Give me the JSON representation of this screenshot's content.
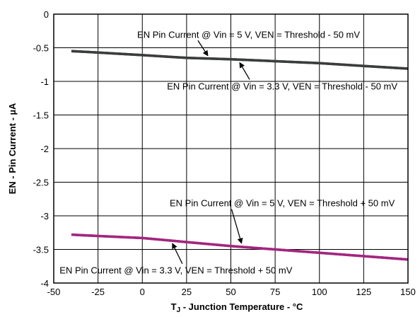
{
  "chart_data": {
    "type": "line",
    "title": "",
    "xlabel_main": "T",
    "xlabel_sub": "J",
    "xlabel_rest": " - Junction Temperature - °C",
    "ylabel": "EN - Pin Current - µA",
    "xlim": [
      -50,
      150
    ],
    "ylim": [
      -4,
      0
    ],
    "x_ticks": [
      -50,
      -25,
      0,
      25,
      50,
      75,
      100,
      125,
      150
    ],
    "x_tick_labels": [
      "-50",
      "-25",
      "0",
      "25",
      "50",
      "75",
      "100",
      "125",
      "150"
    ],
    "y_ticks": [
      0,
      -0.5,
      -1,
      -1.5,
      -2,
      -2.5,
      -3,
      -3.5,
      -4
    ],
    "y_tick_labels": [
      "0",
      "-0.5",
      "-1",
      "-1.5",
      "-2",
      "-2.5",
      "-3",
      "-3.5",
      "-4"
    ],
    "grid": true,
    "series": [
      {
        "name": "EN Pin Current @ Vin = 5 V, VEN = Threshold - 50 mV",
        "color": "#3a3d3b",
        "x": [
          -40,
          -25,
          0,
          25,
          50,
          75,
          100,
          125,
          150
        ],
        "y": [
          -0.55,
          -0.57,
          -0.61,
          -0.65,
          -0.67,
          -0.7,
          -0.73,
          -0.77,
          -0.81
        ]
      },
      {
        "name": "EN Pin Current @ Vin = 3.3 V, VEN = Threshold - 50 mV",
        "color": "#3a3d3b",
        "x": [
          -40,
          -25,
          0,
          25,
          50,
          75,
          100,
          125,
          150
        ],
        "y": [
          -0.55,
          -0.57,
          -0.61,
          -0.65,
          -0.67,
          -0.7,
          -0.73,
          -0.77,
          -0.81
        ]
      },
      {
        "name": "EN Pin Current @ Vin = 5 V, VEN = Threshold + 50 mV",
        "color": "#a3267f",
        "x": [
          -40,
          -25,
          0,
          25,
          50,
          75,
          100,
          125,
          150
        ],
        "y": [
          -3.28,
          -3.3,
          -3.33,
          -3.39,
          -3.45,
          -3.5,
          -3.55,
          -3.6,
          -3.65
        ]
      },
      {
        "name": "EN Pin Current @ Vin = 3.3 V, VEN = Threshold + 50 mV",
        "color": "#a3267f",
        "x": [
          -40,
          -25,
          0,
          25,
          50,
          75,
          100,
          125,
          150
        ],
        "y": [
          -3.28,
          -3.3,
          -3.33,
          -3.39,
          -3.45,
          -3.5,
          -3.55,
          -3.6,
          -3.65
        ]
      }
    ],
    "annotations": [
      {
        "text": "EN Pin Current @ Vin = 5 V, VEN = Threshold - 50 mV",
        "point": [
          37,
          -0.66
        ],
        "text_pos": [
          60,
          -0.35
        ]
      },
      {
        "text": "EN Pin Current @ Vin = 3.3 V, VEN = Threshold - 50 mV",
        "point": [
          55,
          -0.68
        ],
        "text_pos": [
          79,
          -1.12
        ]
      },
      {
        "text": "EN Pin Current @ Vin = 5 V, VEN = Threshold + 50 mV",
        "point": [
          56,
          -3.45
        ],
        "text_pos": [
          79,
          -2.86
        ]
      },
      {
        "text": "EN Pin Current @ Vin = 3.3 V, VEN = Threshold + 50 mV",
        "point": [
          17,
          -3.37
        ],
        "text_pos": [
          19,
          -3.86
        ]
      }
    ]
  }
}
